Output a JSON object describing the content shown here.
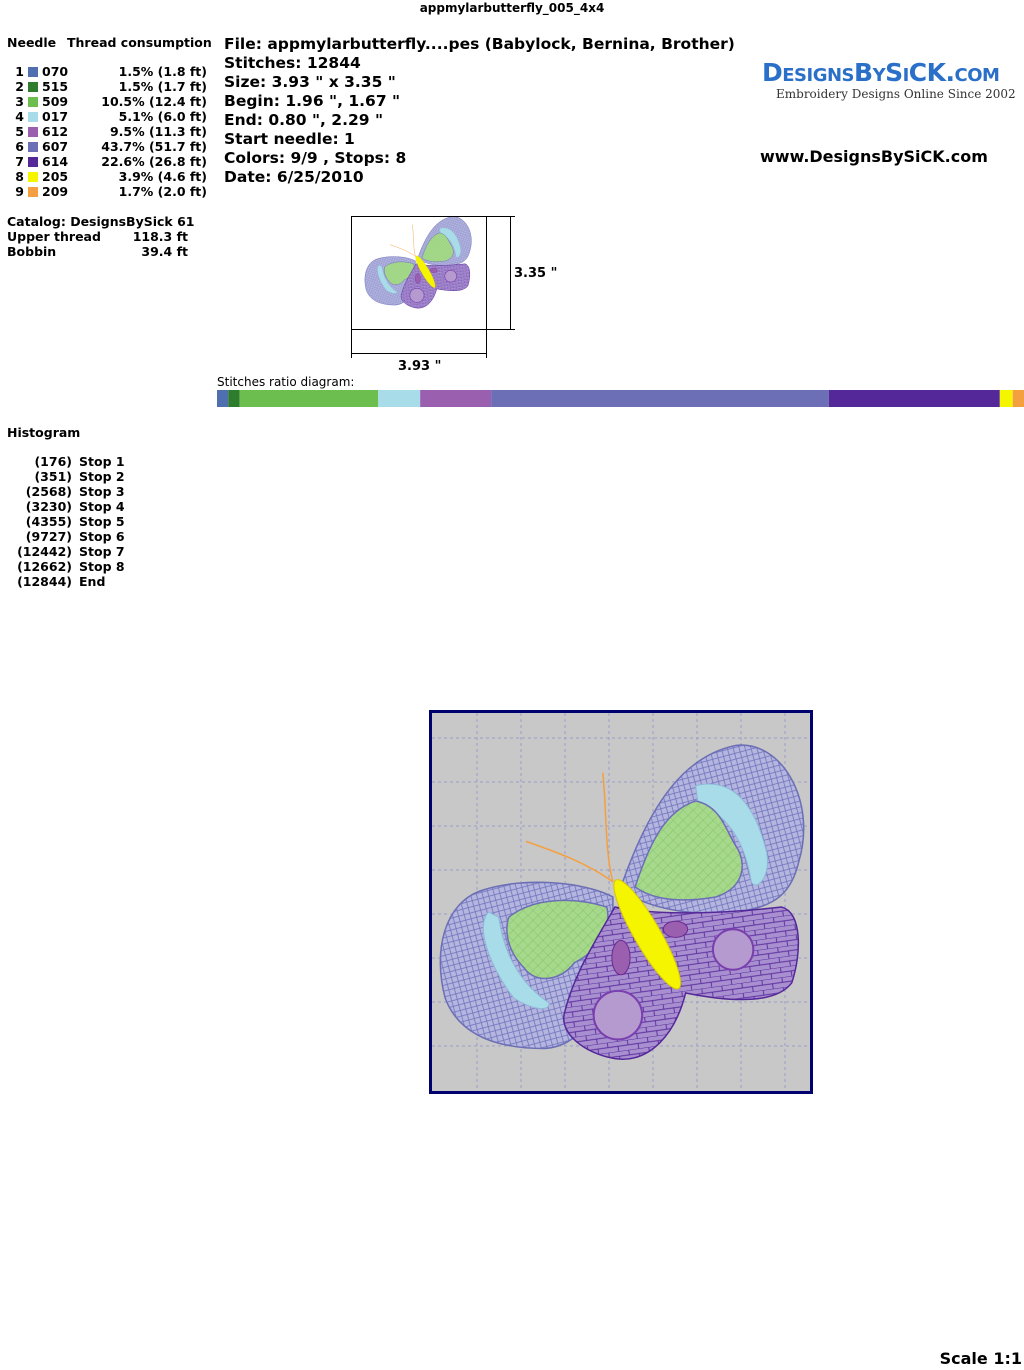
{
  "title": "appmylarbutterfly_005_4x4",
  "threads": {
    "header_needle": "Needle",
    "header_consumption": "Thread consumption",
    "rows": [
      {
        "needle": "1",
        "color": "#4f6fae",
        "code": "070",
        "consumption": "1.5% (1.8 ft)"
      },
      {
        "needle": "2",
        "color": "#2e7d2e",
        "code": "515",
        "consumption": "1.5% (1.7 ft)"
      },
      {
        "needle": "3",
        "color": "#6cbf4f",
        "code": "509",
        "consumption": "10.5% (12.4 ft)"
      },
      {
        "needle": "4",
        "color": "#a8dce8",
        "code": "017",
        "consumption": "5.1% (6.0 ft)"
      },
      {
        "needle": "5",
        "color": "#9b5fb0",
        "code": "612",
        "consumption": "9.5% (11.3 ft)"
      },
      {
        "needle": "6",
        "color": "#6c6fb5",
        "code": "607",
        "consumption": "43.7% (51.7 ft)"
      },
      {
        "needle": "7",
        "color": "#55289a",
        "code": "614",
        "consumption": "22.6% (26.8 ft)"
      },
      {
        "needle": "8",
        "color": "#f5f500",
        "code": "205",
        "consumption": "3.9% (4.6 ft)"
      },
      {
        "needle": "9",
        "color": "#f5a040",
        "code": "209",
        "consumption": "1.7% (2.0 ft)"
      }
    ]
  },
  "catalog": {
    "catalog": "Catalog: DesignsBySick 61",
    "upper_label": "Upper thread",
    "upper_value": "118.3 ft",
    "bobbin_label": "Bobbin",
    "bobbin_value": "39.4 ft"
  },
  "info": {
    "lines": [
      "File: appmylarbutterfly....pes  (Babylock, Bernina, Brother)",
      "Stitches: 12844",
      "Size: 3.93 \" x 3.35 \"",
      "Begin: 1.96 \", 1.67 \"",
      "End: 0.80 \", 2.29 \"",
      "Start needle: 1",
      "Colors: 9/9 , Stops: 8",
      "Date: 6/25/2010"
    ]
  },
  "logo": {
    "name": "DesignsBySiCK.com",
    "tagline": "Embroidery Designs Online Since 2002",
    "url": "www.DesignsBySiCK.com"
  },
  "preview": {
    "height": "3.35 \"",
    "width": "3.93 \""
  },
  "stitch_ratio": {
    "label": "Stitches ratio diagram:",
    "values": [
      1.4,
      1.4,
      17.2,
      5.2,
      8.8,
      41.9,
      21.2,
      1.6,
      1.4
    ]
  },
  "histogram": {
    "title": "Histogram",
    "rows": [
      [
        "(176)",
        "Stop 1"
      ],
      [
        "(351)",
        "Stop 2"
      ],
      [
        "(2568)",
        "Stop 3"
      ],
      [
        "(3230)",
        "Stop 4"
      ],
      [
        "(4355)",
        "Stop 5"
      ],
      [
        "(9727)",
        "Stop 6"
      ],
      [
        "(12442)",
        "Stop 7"
      ],
      [
        "(12662)",
        "Stop 8"
      ],
      [
        "(12844)",
        "End"
      ]
    ]
  },
  "scale": "Scale 1:1"
}
